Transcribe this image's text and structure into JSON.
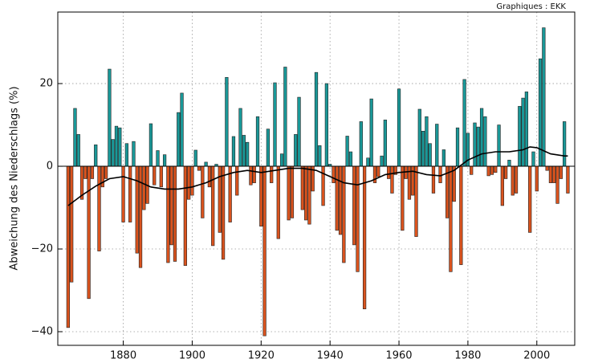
{
  "chart_data": {
    "type": "bar",
    "credit": "Graphiques : EKK",
    "ylabel": "Abweichung des Niederschlags (%)",
    "xlim": [
      1861,
      2011
    ],
    "ylim": [
      -43.3,
      37.3
    ],
    "xticks": [
      1880,
      1900,
      1920,
      1940,
      1960,
      1980,
      2000
    ],
    "yticks": [
      {
        "value": -40,
        "label": "−40"
      },
      {
        "value": -20,
        "label": "−20"
      },
      0,
      20
    ],
    "grid": true,
    "positive_color": "#1a9898",
    "negative_color": "#d9531e",
    "bars": {
      "x": [
        1864,
        1865,
        1866,
        1867,
        1868,
        1869,
        1870,
        1871,
        1872,
        1873,
        1874,
        1875,
        1876,
        1877,
        1878,
        1879,
        1880,
        1881,
        1882,
        1883,
        1884,
        1885,
        1886,
        1887,
        1888,
        1889,
        1890,
        1891,
        1892,
        1893,
        1894,
        1895,
        1896,
        1897,
        1898,
        1899,
        1900,
        1901,
        1902,
        1903,
        1904,
        1905,
        1906,
        1907,
        1908,
        1909,
        1910,
        1911,
        1912,
        1913,
        1914,
        1915,
        1916,
        1917,
        1918,
        1919,
        1920,
        1921,
        1922,
        1923,
        1924,
        1925,
        1926,
        1927,
        1928,
        1929,
        1930,
        1931,
        1932,
        1933,
        1934,
        1935,
        1936,
        1937,
        1938,
        1939,
        1940,
        1941,
        1942,
        1943,
        1944,
        1945,
        1946,
        1947,
        1948,
        1949,
        1950,
        1951,
        1952,
        1953,
        1954,
        1955,
        1956,
        1957,
        1958,
        1959,
        1960,
        1961,
        1962,
        1963,
        1964,
        1965,
        1966,
        1967,
        1968,
        1969,
        1970,
        1971,
        1972,
        1973,
        1974,
        1975,
        1976,
        1977,
        1978,
        1979,
        1980,
        1981,
        1982,
        1983,
        1984,
        1985,
        1986,
        1987,
        1988,
        1989,
        1990,
        1991,
        1992,
        1993,
        1994,
        1995,
        1996,
        1997,
        1998,
        1999,
        2000,
        2001,
        2002,
        2003,
        2004,
        2005,
        2006,
        2007,
        2008,
        2009
      ],
      "values": [
        -39,
        -28,
        14,
        7.7,
        -8,
        -3,
        -32,
        -3,
        5.2,
        -20.5,
        -5,
        -3,
        23.5,
        6.5,
        9.7,
        9.3,
        -13.5,
        5.5,
        -13.5,
        6,
        -21,
        -24.5,
        -10.5,
        -9,
        10.3,
        -4.5,
        3.8,
        -5,
        2.8,
        -23.3,
        -19,
        -23,
        13,
        17.7,
        -24,
        -8,
        -7,
        3.9,
        -1,
        -12.5,
        1,
        -5,
        -19.2,
        0.5,
        -16,
        -22.5,
        21.5,
        -13.5,
        7.2,
        -7,
        14,
        7.5,
        5.8,
        -4.5,
        -4,
        12,
        -14.5,
        -41,
        9,
        -4,
        20.2,
        -17.5,
        3,
        24,
        -13,
        -12.5,
        7.7,
        16.7,
        -10.5,
        -13,
        -14,
        -6,
        22.7,
        5,
        -9.5,
        20,
        0.5,
        -4,
        -15.5,
        -16.5,
        -23.3,
        7.3,
        3.5,
        -19,
        -25.5,
        10.8,
        -34.5,
        2,
        16.3,
        -4,
        -2.5,
        2.5,
        11.2,
        -3,
        -6.5,
        -2,
        18.7,
        -15.5,
        -3,
        -8,
        -7,
        -17,
        13.8,
        8.5,
        12,
        5.5,
        -6.5,
        10.2,
        -4,
        4,
        -12.5,
        -25.5,
        -8.5,
        9.3,
        -23.8,
        21,
        8,
        -2,
        10.5,
        9.5,
        14,
        12,
        -2.3,
        -2,
        -1.5,
        10,
        -9.5,
        -3,
        1.5,
        -7,
        -6.5,
        14.5,
        16.5,
        18,
        -16,
        3.5,
        -6,
        26,
        33.5,
        -1,
        -4,
        -4,
        -9,
        -3,
        10.8,
        -6.5
      ]
    },
    "line": {
      "color": "#000000",
      "x": [
        1864,
        1868,
        1872,
        1876,
        1880,
        1884,
        1888,
        1892,
        1896,
        1900,
        1904,
        1908,
        1912,
        1916,
        1920,
        1924,
        1928,
        1932,
        1936,
        1940,
        1944,
        1948,
        1952,
        1956,
        1960,
        1964,
        1968,
        1972,
        1976,
        1980,
        1984,
        1988,
        1992,
        1996,
        1998,
        2000,
        2004,
        2008,
        2009
      ],
      "values": [
        -9.5,
        -7,
        -4.8,
        -3,
        -2.5,
        -3.5,
        -5,
        -5.5,
        -5.5,
        -5,
        -4,
        -2.5,
        -1.5,
        -1,
        -1.5,
        -1,
        -0.5,
        -0.5,
        -1,
        -2.5,
        -4,
        -4.5,
        -3.5,
        -2,
        -1.5,
        -1.2,
        -2,
        -2.3,
        -1,
        1.5,
        3,
        3.5,
        3.5,
        4,
        4.7,
        4.5,
        3,
        2.5,
        2.5
      ]
    }
  }
}
